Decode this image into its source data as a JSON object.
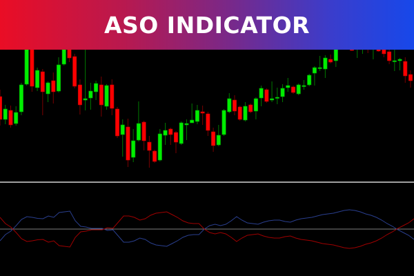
{
  "banner": {
    "title": "ASO INDICATOR"
  },
  "colors": {
    "background": "#000000",
    "bull_body": "#00ee00",
    "bull_wick": "#007a00",
    "bear_body": "#ff0000",
    "bear_wick": "#7a0000",
    "separator": "#a0a0a0",
    "zero_line": "#808080",
    "aso_bull": "#2a3f8f",
    "aso_bear": "#a00000"
  },
  "chart_data": [
    {
      "type": "candlestick",
      "title": "",
      "xlabel": "",
      "ylabel": "",
      "ylim": [
        138,
        328
      ],
      "grid": false,
      "candles": [
        [
          260,
          270,
          218,
          227
        ],
        [
          227,
          248,
          220,
          242
        ],
        [
          240,
          247,
          215,
          219
        ],
        [
          221,
          246,
          218,
          237
        ],
        [
          238,
          280,
          233,
          277
        ],
        [
          278,
          345,
          276,
          340
        ],
        [
          338,
          345,
          267,
          275
        ],
        [
          273,
          302,
          268,
          298
        ],
        [
          296,
          300,
          233,
          267
        ],
        [
          264,
          282,
          252,
          280
        ],
        [
          283,
          295,
          250,
          267
        ],
        [
          268,
          317,
          266,
          306
        ],
        [
          307,
          338,
          305,
          330
        ],
        [
          335,
          340,
          310,
          316
        ],
        [
          318,
          322,
          272,
          275
        ],
        [
          277,
          285,
          234,
          248
        ],
        [
          255,
          335,
          240,
          257
        ],
        [
          258,
          280,
          241,
          268
        ],
        [
          267,
          283,
          255,
          279
        ],
        [
          277,
          289,
          231,
          248
        ],
        [
          246,
          278,
          241,
          276
        ],
        [
          277,
          285,
          233,
          243
        ],
        [
          242,
          245,
          200,
          203
        ],
        [
          205,
          227,
          173,
          219
        ],
        [
          216,
          228,
          158,
          168
        ],
        [
          172,
          213,
          165,
          196
        ],
        [
          197,
          253,
          195,
          221
        ],
        [
          223,
          225,
          182,
          196
        ],
        [
          194,
          203,
          157,
          182
        ],
        [
          181,
          183,
          164,
          166
        ],
        [
          168,
          213,
          166,
          206
        ],
        [
          204,
          222,
          190,
          211
        ],
        [
          213,
          215,
          190,
          205
        ],
        [
          208,
          210,
          178,
          194
        ],
        [
          192,
          224,
          190,
          222
        ],
        [
          219,
          227,
          197,
          221
        ],
        [
          222,
          250,
          222,
          226
        ],
        [
          224,
          248,
          220,
          240
        ],
        [
          238,
          247,
          219,
          236
        ],
        [
          235,
          238,
          203,
          211
        ],
        [
          209,
          215,
          180,
          189
        ],
        [
          190,
          219,
          188,
          204
        ],
        [
          205,
          242,
          203,
          240
        ],
        [
          238,
          265,
          236,
          257
        ],
        [
          255,
          262,
          233,
          239
        ],
        [
          245,
          247,
          225,
          227
        ],
        [
          226,
          252,
          224,
          246
        ],
        [
          248,
          250,
          236,
          238
        ],
        [
          239,
          259,
          227,
          257
        ],
        [
          258,
          276,
          246,
          272
        ],
        [
          270,
          272,
          251,
          253
        ],
        [
          255,
          282,
          252,
          257
        ],
        [
          258,
          273,
          249,
          259
        ],
        [
          260,
          278,
          252,
          272
        ],
        [
          273,
          287,
          267,
          276
        ],
        [
          274,
          276,
          264,
          266
        ],
        [
          264,
          279,
          262,
          277
        ],
        [
          275,
          284,
          270,
          276
        ],
        [
          277,
          293,
          275,
          291
        ],
        [
          294,
          304,
          276,
          302
        ],
        [
          301,
          319,
          297,
          302
        ],
        [
          300,
          320,
          287,
          316
        ],
        [
          314,
          321,
          308,
          310
        ],
        [
          312,
          340,
          303,
          332
        ],
        [
          335,
          350,
          331,
          345
        ],
        [
          345,
          352,
          333,
          340
        ],
        [
          340,
          345,
          326,
          327
        ],
        [
          335,
          348,
          316,
          340
        ],
        [
          340,
          352,
          322,
          345
        ],
        [
          345,
          350,
          323,
          342
        ],
        [
          340,
          355,
          314,
          348
        ],
        [
          340,
          345,
          325,
          326
        ],
        [
          335,
          340,
          317,
          322
        ],
        [
          325,
          330,
          307,
          312
        ],
        [
          311,
          328,
          297,
          312
        ],
        [
          312,
          316,
          298,
          314
        ],
        [
          311,
          317,
          280,
          290
        ],
        [
          292,
          298,
          273,
          283
        ]
      ]
    },
    {
      "type": "line",
      "title": "",
      "xlabel": "",
      "ylabel": "",
      "ylim": [
        -45,
        45
      ],
      "zero_line": 0,
      "grid": false,
      "series": [
        {
          "values": [
            -17,
            -8,
            -3,
            5,
            14,
            18,
            17,
            15.5,
            15,
            19,
            17,
            24,
            25,
            26,
            12,
            4,
            3,
            1,
            1,
            1,
            -2,
            -1,
            -10,
            -19,
            -19,
            -17,
            -13,
            -15,
            -20,
            -23,
            -24,
            -25,
            -21,
            -17,
            -12,
            -9,
            -8,
            -8,
            0,
            5,
            7,
            5,
            7,
            12,
            18,
            13,
            9,
            8,
            7,
            10,
            12,
            13,
            13,
            11,
            10,
            13,
            15,
            16,
            17,
            19,
            21,
            22,
            23,
            25,
            27,
            28,
            27,
            25,
            22,
            20,
            17,
            13,
            8,
            4,
            -1,
            -5,
            -9,
            -15
          ],
          "color_key": "aso_bull"
        },
        {
          "values": [
            17,
            8,
            3,
            -5,
            -14,
            -18,
            -17,
            -15.5,
            -15,
            -19,
            -17,
            -24,
            -25,
            -26,
            -12,
            -4,
            -3,
            -1,
            -1,
            -1,
            2,
            1,
            10,
            19,
            19,
            17,
            13,
            15,
            20,
            23,
            24,
            25,
            21,
            17,
            12,
            9,
            8,
            8,
            0,
            -5,
            -7,
            -5,
            -7,
            -12,
            -18,
            -13,
            -9,
            -8,
            -7,
            -10,
            -12,
            -13,
            -13,
            -11,
            -10,
            -13,
            -15,
            -16,
            -17,
            -19,
            -21,
            -22,
            -23,
            -25,
            -27,
            -28,
            -27,
            -25,
            -22,
            -20,
            -17,
            -13,
            -8,
            -4,
            1,
            5,
            9,
            15
          ],
          "color_key": "aso_bear"
        }
      ]
    }
  ]
}
